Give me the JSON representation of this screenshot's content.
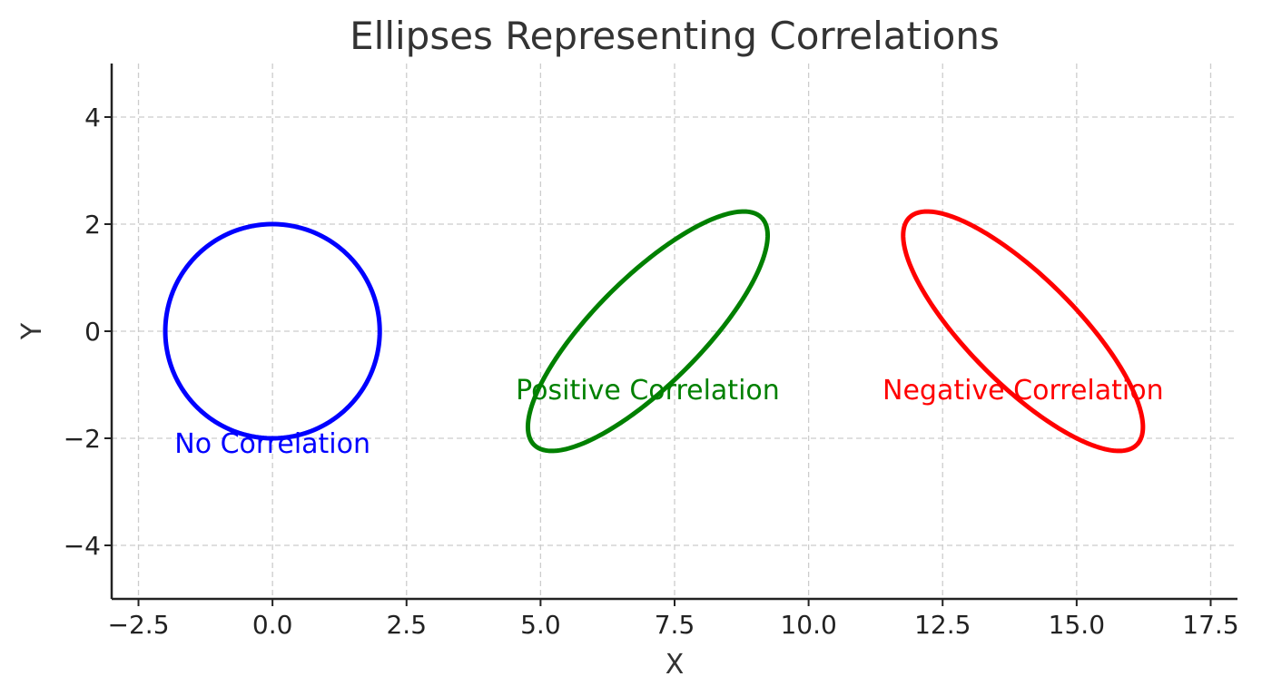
{
  "chart_data": {
    "type": "line",
    "title": "Ellipses Representing Correlations",
    "xlabel": "X",
    "ylabel": "Y",
    "xlim": [
      -3,
      18
    ],
    "ylim": [
      -5,
      5
    ],
    "grid": true,
    "x_ticks": [
      -2.5,
      0.0,
      2.5,
      5.0,
      7.5,
      10.0,
      12.5,
      15.0,
      17.5
    ],
    "x_tick_labels": [
      "−2.5",
      "0.0",
      "2.5",
      "5.0",
      "7.5",
      "10.0",
      "12.5",
      "15.0",
      "17.5"
    ],
    "y_ticks": [
      -4,
      -2,
      0,
      2,
      4
    ],
    "y_tick_labels": [
      "−4",
      "−2",
      "0",
      "2",
      "4"
    ],
    "series": [
      {
        "color": "#0000ff",
        "center": [
          0,
          0
        ],
        "semi_axes": [
          2,
          2
        ],
        "angle_deg": 0,
        "annotation": {
          "text": "No Correlation",
          "x": 0,
          "y": -2.1
        }
      },
      {
        "color": "#008000",
        "center": [
          7,
          0
        ],
        "semi_axes": [
          3.0,
          1.0
        ],
        "angle_deg": 45,
        "annotation": {
          "text": "Positive Correlation",
          "x": 7,
          "y": -1.1
        }
      },
      {
        "color": "#ff0000",
        "center": [
          14,
          0
        ],
        "semi_axes": [
          3.0,
          1.0
        ],
        "angle_deg": -45,
        "annotation": {
          "text": "Negative Correlation",
          "x": 14,
          "y": -1.1
        }
      }
    ]
  }
}
